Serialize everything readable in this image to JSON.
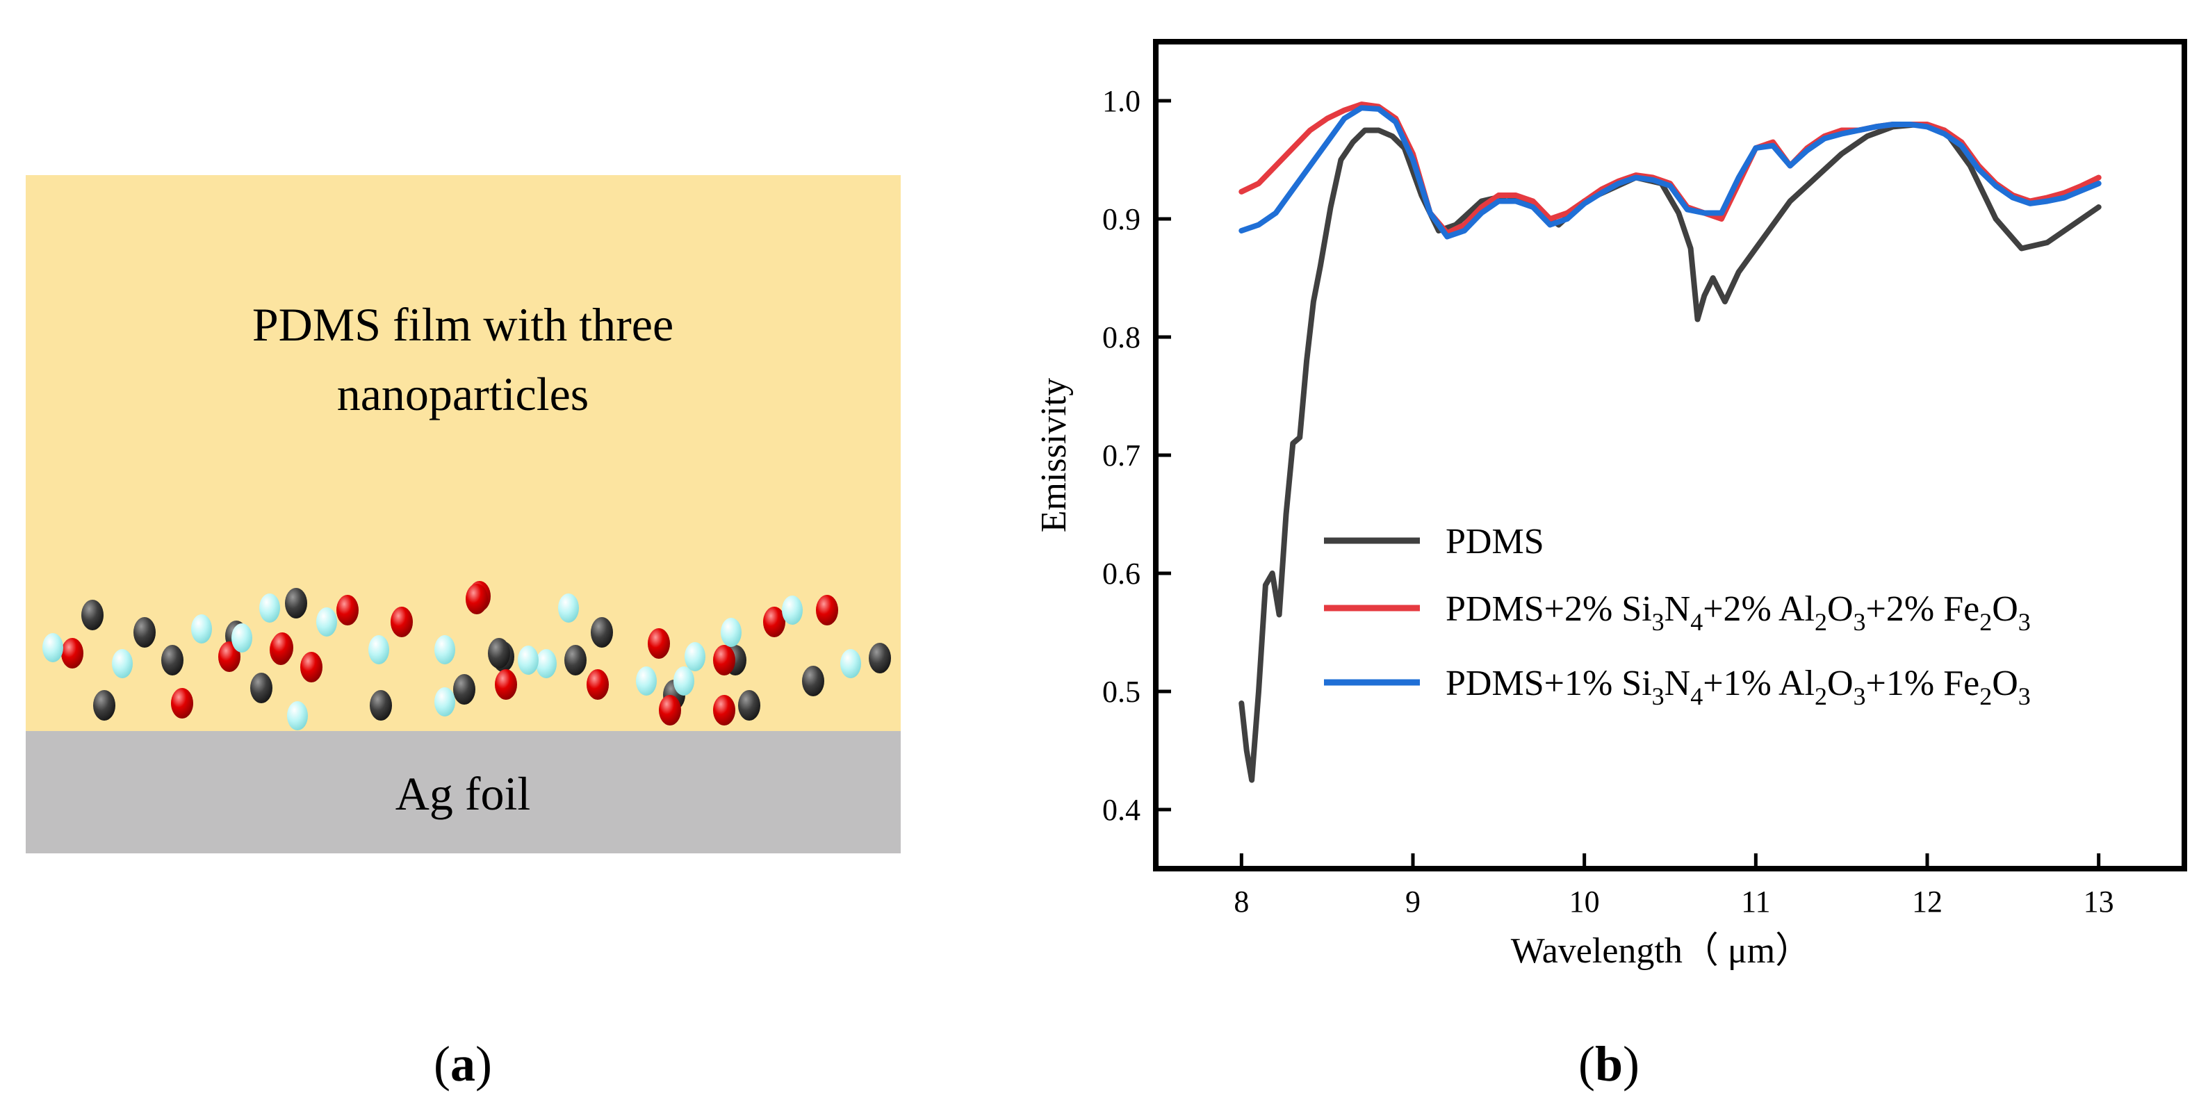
{
  "panel_a": {
    "film_label_line1": "PDMS film with three",
    "film_label_line2": "nanoparticles",
    "substrate_label": "Ag foil",
    "caption": "a",
    "colors": {
      "film": "#fce4a0",
      "substrate": "#c0bfc0"
    },
    "particles": [
      {
        "type": "dark"
      },
      {
        "type": "dark"
      },
      {
        "type": "dark"
      },
      {
        "type": "dark"
      },
      {
        "type": "dark"
      },
      {
        "type": "dark"
      },
      {
        "type": "dark"
      },
      {
        "type": "dark"
      },
      {
        "type": "dark"
      },
      {
        "type": "dark"
      },
      {
        "type": "dark"
      },
      {
        "type": "dark"
      },
      {
        "type": "dark"
      },
      {
        "type": "dark"
      },
      {
        "type": "dark"
      },
      {
        "type": "dark"
      },
      {
        "type": "dark"
      },
      {
        "type": "dark"
      },
      {
        "type": "red"
      },
      {
        "type": "red"
      },
      {
        "type": "red"
      },
      {
        "type": "red"
      },
      {
        "type": "red"
      },
      {
        "type": "red"
      },
      {
        "type": "red"
      },
      {
        "type": "red"
      },
      {
        "type": "red"
      },
      {
        "type": "red"
      },
      {
        "type": "red"
      },
      {
        "type": "red"
      },
      {
        "type": "red"
      },
      {
        "type": "red"
      },
      {
        "type": "red"
      },
      {
        "type": "red"
      },
      {
        "type": "red"
      },
      {
        "type": "red"
      },
      {
        "type": "cyan"
      },
      {
        "type": "cyan"
      },
      {
        "type": "cyan"
      },
      {
        "type": "cyan"
      },
      {
        "type": "cyan"
      },
      {
        "type": "cyan"
      },
      {
        "type": "cyan"
      },
      {
        "type": "cyan"
      },
      {
        "type": "cyan"
      },
      {
        "type": "cyan"
      },
      {
        "type": "cyan"
      },
      {
        "type": "cyan"
      },
      {
        "type": "cyan"
      },
      {
        "type": "cyan"
      },
      {
        "type": "cyan"
      },
      {
        "type": "cyan"
      },
      {
        "type": "cyan"
      },
      {
        "type": "cyan"
      },
      {
        "type": "cyan"
      }
    ]
  },
  "panel_b": {
    "caption": "b"
  },
  "chart_data": {
    "type": "line",
    "title": "",
    "xlabel": "Wavelength（ μm）",
    "ylabel": "Emissivity",
    "xlim": [
      7.5,
      13.5
    ],
    "ylim": [
      0.35,
      1.05
    ],
    "xticks": [
      "8",
      "9",
      "10",
      "11",
      "12",
      "13"
    ],
    "yticks": [
      "0.4",
      "0.5",
      "0.6",
      "0.7",
      "0.8",
      "0.9",
      "1.0"
    ],
    "legend_position": "center-right",
    "legend_labels": [
      [
        "PDMS"
      ],
      [
        "PDMS+2% Si",
        "3",
        "N",
        "4",
        "+2% Al",
        "2",
        "O",
        "3",
        "+2% Fe",
        "2",
        "O",
        "3"
      ],
      [
        "PDMS+1% Si",
        "3",
        "N",
        "4",
        "+1% Al",
        "2",
        "O",
        "3",
        "+1% Fe",
        "2",
        "O",
        "3"
      ]
    ],
    "series": [
      {
        "name": "PDMS",
        "color": "#404040",
        "x": [
          8.0,
          8.03,
          8.06,
          8.1,
          8.14,
          8.18,
          8.22,
          8.26,
          8.3,
          8.34,
          8.38,
          8.42,
          8.46,
          8.52,
          8.58,
          8.65,
          8.72,
          8.8,
          8.88,
          8.95,
          9.05,
          9.15,
          9.25,
          9.4,
          9.55,
          9.7,
          9.85,
          10.0,
          10.15,
          10.3,
          10.45,
          10.55,
          10.62,
          10.66,
          10.7,
          10.75,
          10.82,
          10.9,
          11.0,
          11.1,
          11.2,
          11.35,
          11.5,
          11.65,
          11.8,
          11.95,
          12.1,
          12.25,
          12.4,
          12.55,
          12.7,
          12.85,
          13.0
        ],
        "y": [
          0.49,
          0.45,
          0.425,
          0.5,
          0.59,
          0.6,
          0.565,
          0.65,
          0.71,
          0.715,
          0.78,
          0.83,
          0.86,
          0.91,
          0.95,
          0.965,
          0.975,
          0.975,
          0.97,
          0.96,
          0.92,
          0.89,
          0.895,
          0.915,
          0.92,
          0.91,
          0.895,
          0.915,
          0.925,
          0.935,
          0.93,
          0.905,
          0.875,
          0.815,
          0.835,
          0.85,
          0.83,
          0.855,
          0.875,
          0.895,
          0.915,
          0.935,
          0.955,
          0.97,
          0.978,
          0.98,
          0.975,
          0.945,
          0.9,
          0.875,
          0.88,
          0.895,
          0.91
        ]
      },
      {
        "name": "PDMS+2% Si3N4+2% Al2O3+2% Fe2O3",
        "color": "#e53a40",
        "x": [
          8.0,
          8.1,
          8.2,
          8.3,
          8.4,
          8.5,
          8.6,
          8.7,
          8.8,
          8.9,
          9.0,
          9.1,
          9.2,
          9.3,
          9.4,
          9.5,
          9.6,
          9.7,
          9.8,
          9.9,
          10.0,
          10.1,
          10.2,
          10.3,
          10.4,
          10.5,
          10.6,
          10.7,
          10.8,
          10.9,
          11.0,
          11.1,
          11.2,
          11.3,
          11.4,
          11.5,
          11.6,
          11.7,
          11.8,
          11.9,
          12.0,
          12.1,
          12.2,
          12.3,
          12.4,
          12.5,
          12.6,
          12.7,
          12.8,
          12.9,
          13.0
        ],
        "y": [
          0.923,
          0.93,
          0.945,
          0.96,
          0.975,
          0.985,
          0.992,
          0.997,
          0.995,
          0.985,
          0.955,
          0.905,
          0.888,
          0.895,
          0.91,
          0.92,
          0.92,
          0.915,
          0.9,
          0.905,
          0.915,
          0.925,
          0.932,
          0.937,
          0.935,
          0.93,
          0.91,
          0.905,
          0.9,
          0.93,
          0.96,
          0.965,
          0.945,
          0.96,
          0.97,
          0.975,
          0.975,
          0.978,
          0.98,
          0.98,
          0.98,
          0.975,
          0.965,
          0.945,
          0.93,
          0.92,
          0.915,
          0.918,
          0.922,
          0.928,
          0.935
        ]
      },
      {
        "name": "PDMS+1% Si3N4+1% Al2O3+1% Fe2O3",
        "color": "#1f6fd6",
        "x": [
          8.0,
          8.1,
          8.2,
          8.3,
          8.4,
          8.5,
          8.6,
          8.7,
          8.8,
          8.9,
          9.0,
          9.1,
          9.2,
          9.3,
          9.4,
          9.5,
          9.6,
          9.7,
          9.8,
          9.9,
          10.0,
          10.1,
          10.2,
          10.3,
          10.4,
          10.5,
          10.6,
          10.7,
          10.8,
          10.9,
          11.0,
          11.1,
          11.2,
          11.3,
          11.4,
          11.5,
          11.6,
          11.7,
          11.8,
          11.9,
          12.0,
          12.1,
          12.2,
          12.3,
          12.4,
          12.5,
          12.6,
          12.7,
          12.8,
          12.9,
          13.0
        ],
        "y": [
          0.89,
          0.895,
          0.905,
          0.925,
          0.945,
          0.965,
          0.985,
          0.994,
          0.993,
          0.982,
          0.95,
          0.905,
          0.885,
          0.89,
          0.905,
          0.915,
          0.915,
          0.91,
          0.895,
          0.9,
          0.913,
          0.922,
          0.93,
          0.935,
          0.933,
          0.928,
          0.908,
          0.905,
          0.905,
          0.935,
          0.96,
          0.962,
          0.945,
          0.958,
          0.968,
          0.972,
          0.975,
          0.978,
          0.98,
          0.98,
          0.978,
          0.972,
          0.962,
          0.942,
          0.928,
          0.918,
          0.913,
          0.915,
          0.918,
          0.924,
          0.93
        ]
      }
    ]
  }
}
